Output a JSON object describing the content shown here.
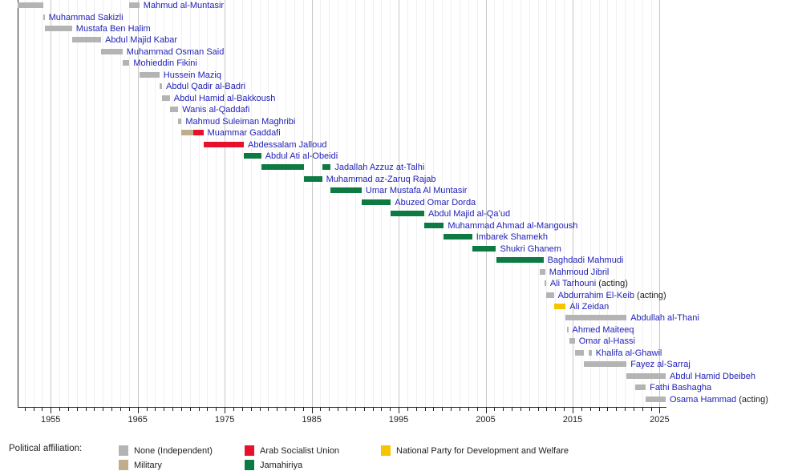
{
  "chart_data": {
    "type": "timeline-gantt",
    "title": "",
    "xlabel": "",
    "ylabel": "",
    "x_domain": [
      1951.2,
      2025.7
    ],
    "x_ticks": [
      1955,
      1965,
      1975,
      1985,
      1995,
      2005,
      2015,
      2025
    ],
    "grid": "vertical-yearly",
    "style": {
      "name_link_color": "#2222b8",
      "axis_text_color": "#202122",
      "minor_grid_color": "#f0f0f2",
      "major_grid_color": "#c6c6c6"
    },
    "affiliation_colors": {
      "none": "#b4b4b4",
      "military": "#c0ad8c",
      "asu": "#e8112d",
      "jamahiriya": "#0d7a43",
      "npdw": "#f6c500"
    },
    "legend": {
      "title": "Political affiliation:",
      "position": "bottom",
      "items": [
        {
          "key": "none",
          "label": "None (Independent)",
          "color": "#b4b4b4"
        },
        {
          "key": "military",
          "label": "Military",
          "color": "#c0ad8c"
        },
        {
          "key": "asu",
          "label": "Arab Socialist Union",
          "color": "#e8112d"
        },
        {
          "key": "jamahiriya",
          "label": "Jamahiriya",
          "color": "#0d7a43"
        },
        {
          "key": "npdw",
          "label": "National Party for Development and Welfare",
          "color": "#f6c500"
        }
      ]
    },
    "people": [
      {
        "name": "Mahmud al-Muntasir",
        "terms": [
          {
            "start": 1951.2,
            "end": 1954.15,
            "affiliation": "none"
          },
          {
            "start": 1964.05,
            "end": 1965.2,
            "affiliation": "none"
          }
        ]
      },
      {
        "name": "Muhammad Sakizli",
        "terms": [
          {
            "start": 1954.1,
            "end": 1954.3,
            "affiliation": "none"
          }
        ]
      },
      {
        "name": "Mustafa Ben Halim",
        "terms": [
          {
            "start": 1954.3,
            "end": 1957.45,
            "affiliation": "none"
          }
        ]
      },
      {
        "name": "Abdul Majid Kabar",
        "terms": [
          {
            "start": 1957.45,
            "end": 1960.8,
            "affiliation": "none"
          }
        ]
      },
      {
        "name": "Muhammad Osman Said",
        "terms": [
          {
            "start": 1960.8,
            "end": 1963.25,
            "affiliation": "none"
          }
        ]
      },
      {
        "name": "Mohieddin Fikini",
        "terms": [
          {
            "start": 1963.25,
            "end": 1964.05,
            "affiliation": "none"
          }
        ]
      },
      {
        "name": "Hussein Maziq",
        "terms": [
          {
            "start": 1965.2,
            "end": 1967.5,
            "affiliation": "none"
          }
        ]
      },
      {
        "name": "Abdul Qadir al-Badri",
        "terms": [
          {
            "start": 1967.5,
            "end": 1967.8,
            "affiliation": "none"
          }
        ]
      },
      {
        "name": "Abdul Hamid al-Bakkoush",
        "terms": [
          {
            "start": 1967.8,
            "end": 1968.7,
            "affiliation": "none"
          }
        ]
      },
      {
        "name": "Wanis al-Qaddafi",
        "terms": [
          {
            "start": 1968.7,
            "end": 1969.67,
            "affiliation": "none"
          }
        ]
      },
      {
        "name": "Mahmud Suleiman Maghribi",
        "terms": [
          {
            "start": 1969.67,
            "end": 1970.05,
            "affiliation": "none"
          }
        ]
      },
      {
        "name": "Muammar Gaddafi",
        "terms": [
          {
            "start": 1970.05,
            "end": 1971.4,
            "affiliation": "military"
          },
          {
            "start": 1971.4,
            "end": 1972.55,
            "affiliation": "asu"
          }
        ]
      },
      {
        "name": "Abdessalam Jalloud",
        "terms": [
          {
            "start": 1972.55,
            "end": 1977.2,
            "affiliation": "asu"
          }
        ]
      },
      {
        "name": "Abdul Ati al-Obeidi",
        "terms": [
          {
            "start": 1977.2,
            "end": 1979.2,
            "affiliation": "jamahiriya"
          }
        ]
      },
      {
        "name": "Jadallah Azzuz at-Talhi",
        "terms": [
          {
            "start": 1979.2,
            "end": 1984.1,
            "affiliation": "jamahiriya"
          },
          {
            "start": 1986.2,
            "end": 1987.2,
            "affiliation": "jamahiriya"
          }
        ]
      },
      {
        "name": "Muhammad az-Zaruq Rajab",
        "terms": [
          {
            "start": 1984.1,
            "end": 1986.2,
            "affiliation": "jamahiriya"
          }
        ]
      },
      {
        "name": "Umar Mustafa Al Muntasir",
        "terms": [
          {
            "start": 1987.2,
            "end": 1990.75,
            "affiliation": "jamahiriya"
          }
        ]
      },
      {
        "name": "Abuzed Omar Dorda",
        "terms": [
          {
            "start": 1990.75,
            "end": 1994.1,
            "affiliation": "jamahiriya"
          }
        ]
      },
      {
        "name": "Abdul Majid al-Qaʻud",
        "terms": [
          {
            "start": 1994.1,
            "end": 1997.95,
            "affiliation": "jamahiriya"
          }
        ]
      },
      {
        "name": "Muhammad Ahmad al-Mangoush",
        "terms": [
          {
            "start": 1997.95,
            "end": 2000.2,
            "affiliation": "jamahiriya"
          }
        ]
      },
      {
        "name": "Imbarek Shamekh",
        "terms": [
          {
            "start": 2000.2,
            "end": 2003.45,
            "affiliation": "jamahiriya"
          }
        ]
      },
      {
        "name": "Shukri Ghanem",
        "terms": [
          {
            "start": 2003.45,
            "end": 2006.2,
            "affiliation": "jamahiriya"
          }
        ]
      },
      {
        "name": "Baghdadi Mahmudi",
        "terms": [
          {
            "start": 2006.2,
            "end": 2011.65,
            "affiliation": "jamahiriya"
          }
        ]
      },
      {
        "name": "Mahmoud Jibril",
        "terms": [
          {
            "start": 2011.2,
            "end": 2011.85,
            "affiliation": "none"
          }
        ]
      },
      {
        "name": "Ali Tarhouni",
        "suffix": " (acting)",
        "terms": [
          {
            "start": 2011.75,
            "end": 2011.95,
            "affiliation": "none"
          }
        ]
      },
      {
        "name": "Abdurrahim El-Keib",
        "suffix": " (acting)",
        "terms": [
          {
            "start": 2011.95,
            "end": 2012.85,
            "affiliation": "none"
          }
        ]
      },
      {
        "name": "Ali Zeidan",
        "terms": [
          {
            "start": 2012.85,
            "end": 2014.2,
            "affiliation": "npdw"
          }
        ]
      },
      {
        "name": "Abdullah al-Thani",
        "terms": [
          {
            "start": 2014.2,
            "end": 2021.2,
            "affiliation": "none"
          }
        ]
      },
      {
        "name": "Ahmed Maiteeq",
        "terms": [
          {
            "start": 2014.35,
            "end": 2014.5,
            "affiliation": "none"
          }
        ]
      },
      {
        "name": "Omar al-Hassi",
        "terms": [
          {
            "start": 2014.65,
            "end": 2015.25,
            "affiliation": "none"
          }
        ]
      },
      {
        "name": "Khalifa al-Ghawil",
        "terms": [
          {
            "start": 2015.25,
            "end": 2016.3,
            "affiliation": "none"
          },
          {
            "start": 2016.8,
            "end": 2017.2,
            "affiliation": "none"
          }
        ]
      },
      {
        "name": "Fayez al-Sarraj",
        "terms": [
          {
            "start": 2016.3,
            "end": 2021.2,
            "affiliation": "none"
          }
        ]
      },
      {
        "name": "Abdul Hamid Dbeibeh",
        "terms": [
          {
            "start": 2021.2,
            "end": 2025.7,
            "affiliation": "none"
          }
        ]
      },
      {
        "name": "Fathi Bashagha",
        "terms": [
          {
            "start": 2022.15,
            "end": 2023.4,
            "affiliation": "none"
          }
        ]
      },
      {
        "name": "Osama Hammad",
        "suffix": " (acting)",
        "terms": [
          {
            "start": 2023.4,
            "end": 2025.7,
            "affiliation": "none"
          }
        ]
      }
    ]
  }
}
